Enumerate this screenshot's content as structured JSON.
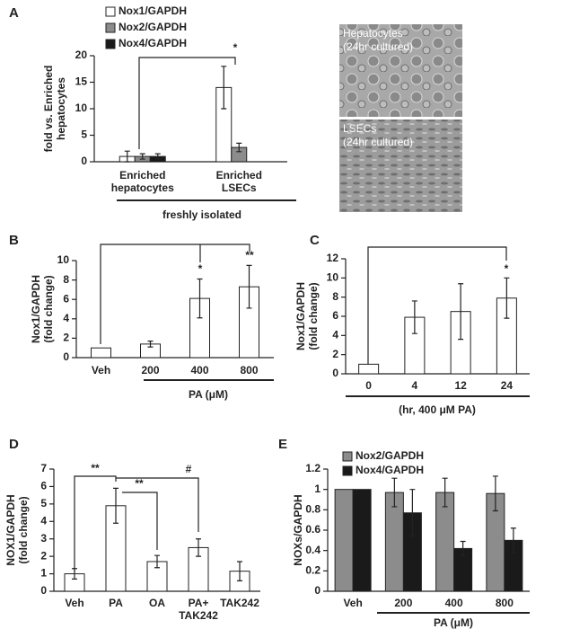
{
  "chart_data": [
    {
      "type": "bar",
      "label": "A",
      "ylabel": "fold vs. Enriched\nhepatocytes",
      "categories": [
        "Enriched\nhepatocytes",
        "Enriched\nLSECs"
      ],
      "series": [
        {
          "name": "Nox1/GAPDH",
          "color": "#ffffff",
          "values": [
            1,
            14
          ],
          "errors": [
            1,
            4
          ]
        },
        {
          "name": "Nox2/GAPDH",
          "color": "#8c8c8c",
          "values": [
            1,
            2.7
          ],
          "errors": [
            0.5,
            0.8
          ]
        },
        {
          "name": "Nox4/GAPDH",
          "color": "#1a1a1a",
          "values": [
            1,
            null
          ],
          "errors": [
            0.5,
            null
          ]
        }
      ],
      "ylim": [
        0,
        20
      ],
      "yticks": [
        0,
        5,
        10,
        15,
        20
      ],
      "group_label": "freshly isolated",
      "annotations": [
        "*"
      ]
    },
    {
      "type": "bar",
      "label": "B",
      "ylabel": "Nox1/GAPDH\n(fold change)",
      "categories": [
        "Veh",
        "200",
        "400",
        "800"
      ],
      "values": [
        1,
        1.4,
        6.1,
        7.3
      ],
      "errors": [
        null,
        0.3,
        2,
        2.2
      ],
      "color": "#ffffff",
      "ylim": [
        0,
        10
      ],
      "yticks": [
        0,
        2,
        4,
        6,
        8,
        10
      ],
      "xlabel": "PA (μM)",
      "annotations": [
        "*",
        "**"
      ]
    },
    {
      "type": "bar",
      "label": "C",
      "ylabel": "Nox1/GAPDH\n(fold change)",
      "categories": [
        "0",
        "4",
        "12",
        "24"
      ],
      "values": [
        1,
        5.9,
        6.5,
        7.9
      ],
      "errors": [
        null,
        1.7,
        2.9,
        2.1
      ],
      "color": "#ffffff",
      "ylim": [
        0,
        12
      ],
      "yticks": [
        0,
        2,
        4,
        6,
        8,
        10,
        12
      ],
      "xlabel": "(hr, 400 μM PA)",
      "annotations": [
        "*"
      ]
    },
    {
      "type": "bar",
      "label": "D",
      "ylabel": "NOX1/GAPDH\n(fold change)",
      "categories": [
        "Veh",
        "PA",
        "OA",
        "PA+\nTAK242",
        "TAK242"
      ],
      "values": [
        1,
        4.9,
        1.7,
        2.5,
        1.15
      ],
      "errors": [
        0.3,
        1,
        0.35,
        0.5,
        0.55
      ],
      "color": "#ffffff",
      "ylim": [
        0,
        7
      ],
      "yticks": [
        0,
        1,
        2,
        3,
        4,
        5,
        6,
        7
      ],
      "annotations": [
        "**",
        "**",
        "#"
      ]
    },
    {
      "type": "bar",
      "label": "E",
      "ylabel": "NOXs/GAPDH",
      "categories": [
        "Veh",
        "200",
        "400",
        "800"
      ],
      "series": [
        {
          "name": "Nox2/GAPDH",
          "color": "#8c8c8c",
          "values": [
            1,
            0.97,
            0.97,
            0.96
          ],
          "errors": [
            null,
            0.14,
            0.14,
            0.17
          ]
        },
        {
          "name": "Nox4/GAPDH",
          "color": "#1a1a1a",
          "values": [
            1,
            0.77,
            0.42,
            0.5
          ],
          "errors": [
            null,
            0.23,
            0.07,
            0.12
          ]
        }
      ],
      "ylim": [
        0,
        1.2
      ],
      "yticks": [
        0,
        0.2,
        0.4,
        0.6,
        0.8,
        1,
        1.2
      ],
      "xlabel": "PA (μM)"
    }
  ],
  "images": [
    {
      "caption": "Hepatocytes\n(24hr cultured)"
    },
    {
      "caption": "LSECs\n(24hr cultured)"
    }
  ]
}
